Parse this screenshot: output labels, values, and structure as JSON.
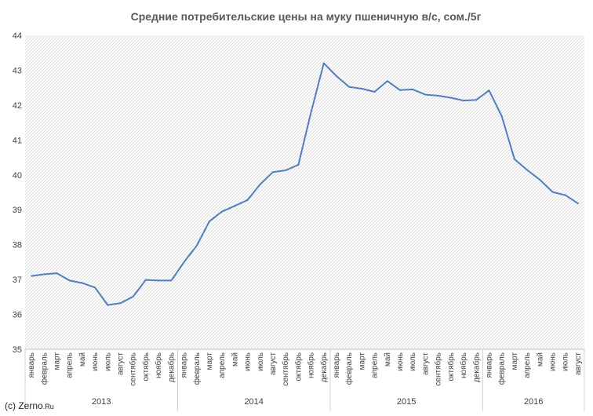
{
  "chart_data": {
    "type": "line",
    "title": "Средние потребительские цены на муку пшеничную в/с, сом./5г",
    "xlabel": "",
    "ylabel": "",
    "ylim": [
      35,
      44
    ],
    "yticks": [
      "35",
      "36",
      "37",
      "38",
      "39",
      "40",
      "41",
      "42",
      "43",
      "44"
    ],
    "grid": "hatched plot area",
    "legend": "none",
    "line_color": "#4f7fbf",
    "months": [
      "январь",
      "февраль",
      "март",
      "апрель",
      "май",
      "июнь",
      "июль",
      "август",
      "сентябрь",
      "октябрь",
      "ноябрь",
      "декабрь"
    ],
    "years": [
      {
        "label": "2013",
        "months": 12
      },
      {
        "label": "2014",
        "months": 12
      },
      {
        "label": "2015",
        "months": 12
      },
      {
        "label": "2016",
        "months": 8
      }
    ],
    "series": [
      {
        "values": [
          37.1,
          37.15,
          37.18,
          36.97,
          36.9,
          36.77,
          36.27,
          36.32,
          36.51,
          36.99,
          36.97,
          36.97,
          37.5,
          37.97,
          38.67,
          38.95,
          39.11,
          39.28,
          39.73,
          40.08,
          40.13,
          40.29,
          41.8,
          43.2,
          42.83,
          42.52,
          42.47,
          42.38,
          42.69,
          42.43,
          42.45,
          42.3,
          42.27,
          42.21,
          42.13,
          42.15,
          42.42,
          41.68,
          40.45,
          40.14,
          39.86,
          39.51,
          39.42,
          39.18
        ]
      }
    ]
  },
  "credit": {
    "prefix": "(c) Zerno",
    "suffix": ".Ru"
  }
}
